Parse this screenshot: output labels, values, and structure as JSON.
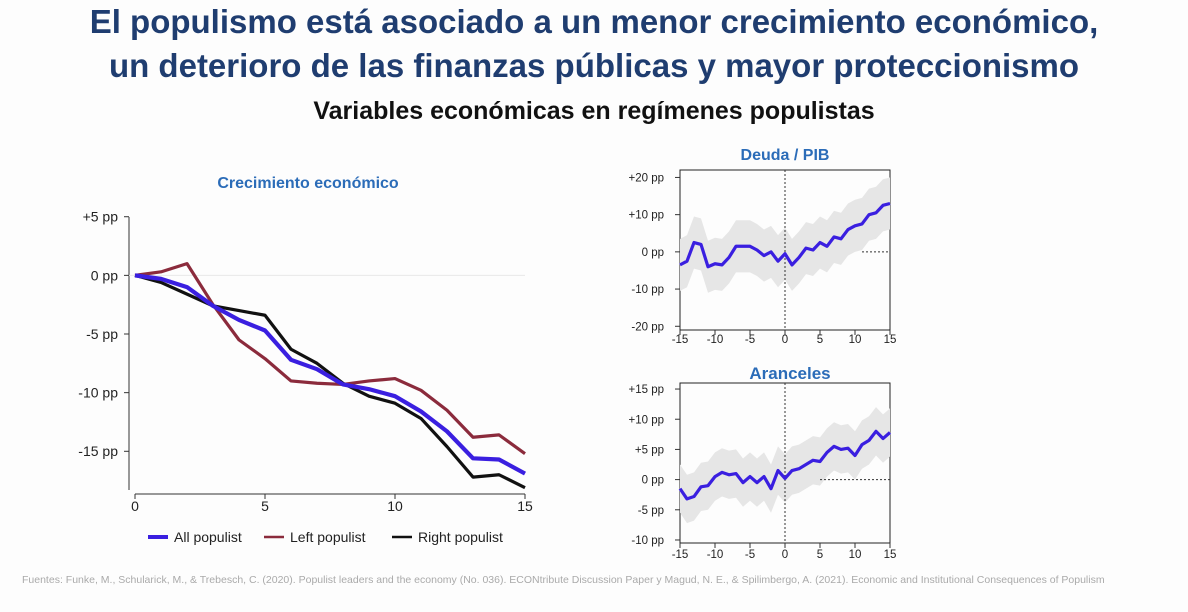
{
  "title_line1": "El populismo está asociado a un menor crecimiento económico,",
  "title_line2": "un  deterioro de las finanzas públicas y mayor proteccionismo",
  "subtitle": "Variables económicas en regímenes populistas",
  "source": "Fuentes: Funke, M., Schularick, M., & Trebesch, C. (2020). Populist leaders and the economy (No. 036). ECONtribute Discussion Paper y Magud, N. E., & Spilimbergo, A. (2021). Economic and Institutional Consequences of Populism",
  "colors": {
    "title": "#1f3d70",
    "chart_title": "#2b6cb8",
    "all_populist": "#3a1fe0",
    "left_populist": "#8b2b3c",
    "right_populist": "#111111",
    "band": "#e6e6e6"
  },
  "chart_data": [
    {
      "type": "line",
      "title": "Crecimiento económico",
      "x": [
        0,
        1,
        2,
        3,
        4,
        5,
        6,
        7,
        8,
        9,
        10,
        11,
        12,
        13,
        14,
        15
      ],
      "xticks": [
        0,
        5,
        10,
        15
      ],
      "yticks": [
        5,
        0,
        -5,
        -10,
        -15
      ],
      "ytick_labels": [
        "+5 pp",
        "0 pp",
        "-5 pp",
        "-10 pp",
        "-15 pp"
      ],
      "ylim": [
        -18,
        6
      ],
      "xlim": [
        0,
        15
      ],
      "legend": "bottom",
      "series": [
        {
          "name": "All populist",
          "values": [
            0,
            -0.3,
            -1.0,
            -2.6,
            -3.8,
            -4.7,
            -7.2,
            -8.0,
            -9.3,
            -9.7,
            -10.3,
            -11.6,
            -13.3,
            -15.6,
            -15.7,
            -16.9
          ]
        },
        {
          "name": "Left populist",
          "values": [
            0,
            0.3,
            1.0,
            -2.5,
            -5.5,
            -7.1,
            -9.0,
            -9.2,
            -9.3,
            -9.0,
            -8.8,
            -9.8,
            -11.5,
            -13.8,
            -13.6,
            -15.2
          ]
        },
        {
          "name": "Right populist",
          "values": [
            0,
            -0.6,
            -1.6,
            -2.6,
            -3.0,
            -3.4,
            -6.3,
            -7.5,
            -9.2,
            -10.3,
            -10.9,
            -12.2,
            -14.6,
            -17.2,
            -17.0,
            -18.1
          ]
        }
      ]
    },
    {
      "type": "line",
      "title": "Deuda  / PIB",
      "x": [
        -15,
        -14,
        -13,
        -12,
        -11,
        -10,
        -9,
        -8,
        -7,
        -6,
        -5,
        -4,
        -3,
        -2,
        -1,
        0,
        1,
        2,
        3,
        4,
        5,
        6,
        7,
        8,
        9,
        10,
        11,
        12,
        13,
        14,
        15
      ],
      "xticks": [
        -15,
        -10,
        -5,
        0,
        5,
        10,
        15
      ],
      "yticks": [
        20,
        10,
        0,
        -10,
        -20
      ],
      "ytick_labels": [
        "+20 pp",
        "+10 pp",
        "0 pp",
        "-10 pp",
        "-20 pp"
      ],
      "ylim": [
        -20,
        20
      ],
      "xlim": [
        -15,
        15
      ],
      "band_halfwidth": 7,
      "series": [
        {
          "name": "",
          "values": [
            -3.5,
            -2.5,
            2.5,
            2,
            -4,
            -3.2,
            -3.5,
            -1.5,
            1.5,
            1.5,
            1.5,
            0.5,
            -1,
            0,
            -2.5,
            -0.5,
            -3.5,
            -1.5,
            1,
            0.5,
            2.5,
            1.5,
            4,
            3.5,
            6,
            7,
            7.5,
            10,
            10.5,
            12.5,
            13
          ]
        }
      ]
    },
    {
      "type": "line",
      "title": "Aranceles",
      "x": [
        -15,
        -14,
        -13,
        -12,
        -11,
        -10,
        -9,
        -8,
        -7,
        -6,
        -5,
        -4,
        -3,
        -2,
        -1,
        0,
        1,
        2,
        3,
        4,
        5,
        6,
        7,
        8,
        9,
        10,
        11,
        12,
        13,
        14,
        15
      ],
      "xticks": [
        -15,
        -10,
        -5,
        0,
        5,
        10,
        15
      ],
      "yticks": [
        15,
        10,
        5,
        0,
        -5,
        -10
      ],
      "ytick_labels": [
        "+15 pp",
        "+10 pp",
        "+5 pp",
        "0 pp",
        "-5 pp",
        "-10 pp"
      ],
      "ylim": [
        -10,
        15
      ],
      "xlim": [
        -15,
        15
      ],
      "band_halfwidth": 4,
      "series": [
        {
          "name": "",
          "values": [
            -1.5,
            -3.2,
            -2.8,
            -1.2,
            -1,
            0.5,
            1.2,
            0.8,
            1,
            -0.5,
            0.5,
            -0.5,
            0.5,
            -1.5,
            1.5,
            0.2,
            1.5,
            1.8,
            2.5,
            3.2,
            3,
            4.5,
            5.5,
            5,
            5.2,
            4,
            5.8,
            6.5,
            8,
            6.8,
            7.8
          ]
        }
      ]
    }
  ]
}
